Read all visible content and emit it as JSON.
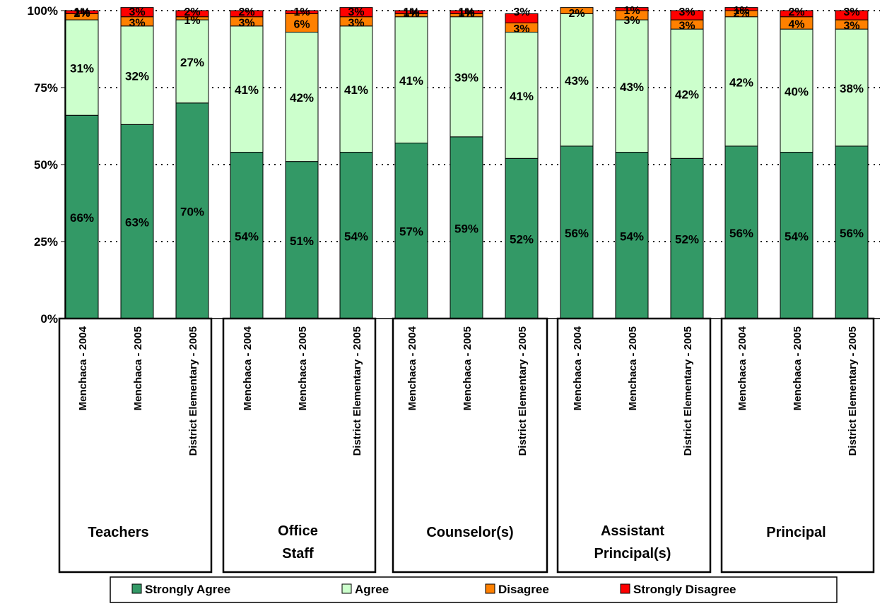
{
  "chart_data": {
    "type": "bar",
    "stacked": true,
    "percent_stacked": true,
    "title": "",
    "xlabel": "",
    "ylabel": "",
    "ylim": [
      0,
      100
    ],
    "yticks": [
      "0%",
      "25%",
      "50%",
      "75%",
      "100%"
    ],
    "grid": true,
    "legend_position": "bottom",
    "groups": [
      {
        "name": "Teachers",
        "lines": [
          "Teachers"
        ]
      },
      {
        "name": "Office Staff",
        "lines": [
          "Office",
          "Staff"
        ]
      },
      {
        "name": "Counselor(s)",
        "lines": [
          "Counselor(s)"
        ]
      },
      {
        "name": "Assistant Principal(s)",
        "lines": [
          "Assistant",
          "Principal(s)"
        ]
      },
      {
        "name": "Principal",
        "lines": [
          "Principal"
        ]
      }
    ],
    "categories": [
      "Menchaca - 2004",
      "Menchaca - 2005",
      "District Elementary - 2005",
      "Menchaca - 2004",
      "Menchaca - 2005",
      "District Elementary - 2005",
      "Menchaca - 2004",
      "Menchaca - 2005",
      "District Elementary - 2005",
      "Menchaca - 2004",
      "Menchaca - 2005",
      "District Elementary - 2005",
      "Menchaca - 2004",
      "Menchaca - 2005",
      "District Elementary - 2005"
    ],
    "series": [
      {
        "name": "Strongly Agree",
        "color": "#339966",
        "values": [
          66,
          63,
          70,
          54,
          51,
          54,
          57,
          59,
          52,
          56,
          54,
          52,
          56,
          54,
          56
        ]
      },
      {
        "name": "Agree",
        "color": "#ccffcc",
        "values": [
          31,
          32,
          27,
          41,
          42,
          41,
          41,
          39,
          41,
          43,
          43,
          42,
          42,
          40,
          38
        ]
      },
      {
        "name": "Disagree",
        "color": "#ff8000",
        "values": [
          2,
          3,
          1,
          3,
          6,
          3,
          1,
          1,
          3,
          2,
          3,
          3,
          2,
          4,
          3
        ]
      },
      {
        "name": "Strongly Disagree",
        "color": "#ff0000",
        "values": [
          1,
          3,
          2,
          2,
          1,
          3,
          1,
          1,
          3,
          0,
          1,
          3,
          1,
          2,
          3
        ]
      }
    ],
    "labels": [
      [
        "66%",
        "31%",
        "2%",
        "1%"
      ],
      [
        "63%",
        "32%",
        "3%",
        "3%"
      ],
      [
        "70%",
        "27%",
        "1%",
        "2%"
      ],
      [
        "54%",
        "41%",
        "3%",
        "2%"
      ],
      [
        "51%",
        "42%",
        "6%",
        "1%"
      ],
      [
        "54%",
        "41%",
        "3%",
        "3%"
      ],
      [
        "57%",
        "41%",
        "1%",
        "1%"
      ],
      [
        "59%",
        "39%",
        "1%",
        "1%"
      ],
      [
        "52%",
        "41%",
        "3%",
        "3%"
      ],
      [
        "56%",
        "43%",
        "2%",
        ""
      ],
      [
        "54%",
        "43%",
        "3%",
        "1%"
      ],
      [
        "52%",
        "42%",
        "3%",
        "3%"
      ],
      [
        "56%",
        "42%",
        "2%",
        "1%"
      ],
      [
        "54%",
        "40%",
        "4%",
        "2%"
      ],
      [
        "56%",
        "38%",
        "3%",
        "3%"
      ]
    ]
  }
}
